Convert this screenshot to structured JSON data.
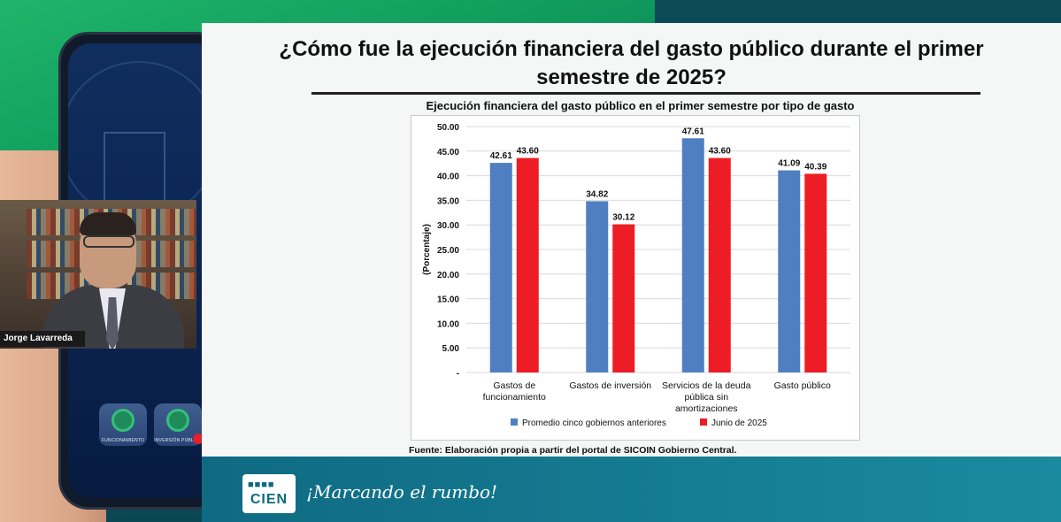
{
  "slide": {
    "title_line1": "¿Cómo fue la ejecución financiera del gasto público durante el primer",
    "title_line2": "semestre de 2025?",
    "source": "Fuente: Elaboración propia a partir del portal de SICOIN Gobierno Central."
  },
  "speaker": {
    "name": "Jorge Lavarreda"
  },
  "phone_apps": [
    {
      "label": "FUNCIONAMIENTO"
    },
    {
      "label": "INVERSIÓN PÚBLICA"
    }
  ],
  "banner": {
    "logo_text": "CIEN",
    "tagline": "¡Marcando el rumbo!"
  },
  "chart_data": {
    "type": "bar",
    "title": "Ejecución financiera del gasto público en el primer semestre por tipo de gasto",
    "ylabel": "(Porcentaje)",
    "ylim": [
      0,
      50
    ],
    "yticks": [
      "-",
      "5.00",
      "10.00",
      "15.00",
      "20.00",
      "25.00",
      "30.00",
      "35.00",
      "40.00",
      "45.00",
      "50.00"
    ],
    "categories": [
      [
        "Gastos de",
        "funcionamiento"
      ],
      [
        "Gastos de inversión"
      ],
      [
        "Servicios de la deuda",
        "pública sin",
        "amortizaciones"
      ],
      [
        "Gasto público"
      ]
    ],
    "series": [
      {
        "name": "Promedio cinco gobiernos anteriores",
        "color": "#4f7fc1",
        "values": [
          42.61,
          34.82,
          47.61,
          41.09
        ],
        "labels": [
          "42.61",
          "34.82",
          "47.61",
          "41.09"
        ]
      },
      {
        "name": "Junio de 2025",
        "color": "#ee1c24",
        "values": [
          43.6,
          30.12,
          43.6,
          40.39
        ],
        "labels": [
          "43.60",
          "30.12",
          "43.60",
          "40.39"
        ]
      }
    ],
    "grid": true,
    "legend": "bottom"
  }
}
